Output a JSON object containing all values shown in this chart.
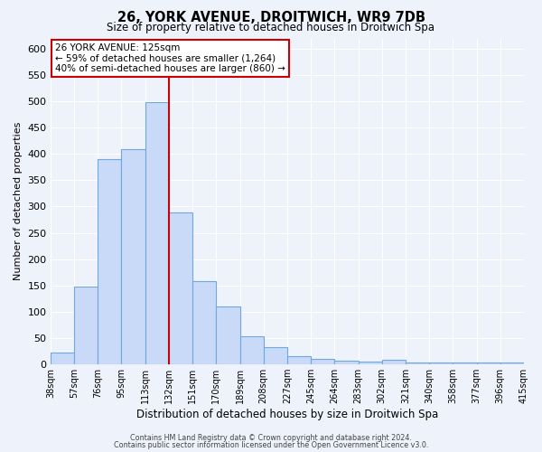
{
  "title": "26, YORK AVENUE, DROITWICH, WR9 7DB",
  "subtitle": "Size of property relative to detached houses in Droitwich Spa",
  "xlabel": "Distribution of detached houses by size in Droitwich Spa",
  "ylabel": "Number of detached properties",
  "bar_labels": [
    "38sqm",
    "57sqm",
    "76sqm",
    "95sqm",
    "113sqm",
    "132sqm",
    "151sqm",
    "170sqm",
    "189sqm",
    "208sqm",
    "227sqm",
    "245sqm",
    "264sqm",
    "283sqm",
    "302sqm",
    "321sqm",
    "340sqm",
    "358sqm",
    "377sqm",
    "396sqm",
    "415sqm"
  ],
  "bar_heights": [
    22,
    148,
    390,
    410,
    498,
    288,
    158,
    110,
    53,
    32,
    15,
    10,
    7,
    5,
    8,
    3,
    3,
    3,
    3,
    3
  ],
  "bar_color": "#c9daf8",
  "bar_edge_color": "#6fa8dc",
  "background_color": "#eef2fb",
  "grid_color": "#ffffff",
  "vline_color": "#cc0000",
  "annotation_title": "26 YORK AVENUE: 125sqm",
  "annotation_line1": "← 59% of detached houses are smaller (1,264)",
  "annotation_line2": "40% of semi-detached houses are larger (860) →",
  "annotation_box_color": "#ffffff",
  "annotation_box_edge": "#cc0000",
  "ylim": [
    0,
    620
  ],
  "yticks": [
    0,
    50,
    100,
    150,
    200,
    250,
    300,
    350,
    400,
    450,
    500,
    550,
    600
  ],
  "footer1": "Contains HM Land Registry data © Crown copyright and database right 2024.",
  "footer2": "Contains public sector information licensed under the Open Government Licence v3.0.",
  "n_bars": 20,
  "vline_bar_idx": 5
}
